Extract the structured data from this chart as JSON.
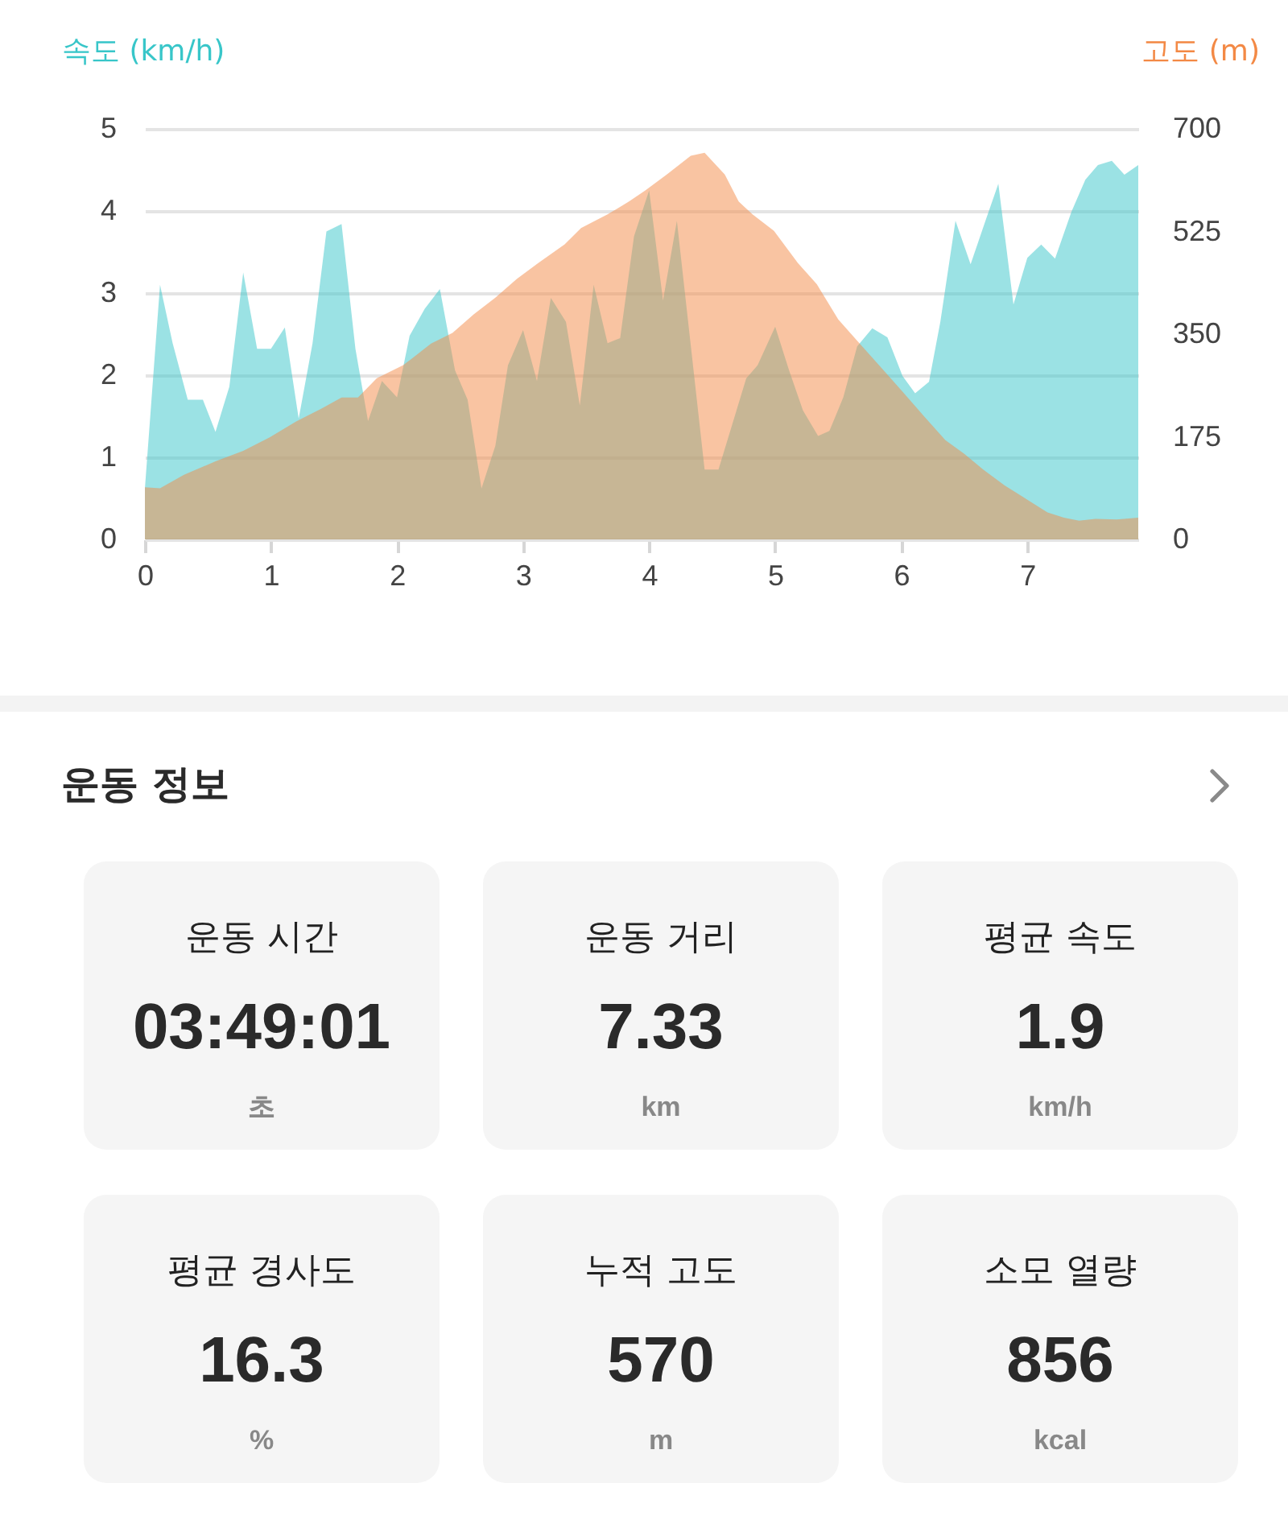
{
  "chart_data": [
    {
      "type": "area",
      "ylabel": "속도 (km/h)",
      "y2label": "고도 (m)",
      "xlim": [
        0,
        7.88
      ],
      "xticks": [
        0,
        1,
        2,
        3,
        4,
        5,
        6,
        7
      ],
      "ylim": [
        0,
        5
      ],
      "yticks": [
        0,
        1,
        2,
        3,
        4,
        5
      ],
      "y2lim": [
        0,
        700
      ],
      "y2ticks": [
        0,
        175,
        350,
        525,
        700
      ],
      "grid": "y",
      "series": [
        {
          "color": "#38c6c9",
          "x": [
            0,
            0.12,
            0.22,
            0.34,
            0.46,
            0.56,
            0.67,
            0.78,
            0.89,
            1.0,
            1.11,
            1.22,
            1.33,
            1.44,
            1.56,
            1.67,
            1.77,
            1.88,
            2.0,
            2.1,
            2.22,
            2.34,
            2.46,
            2.56,
            2.67,
            2.78,
            2.88,
            3.0,
            3.11,
            3.22,
            3.34,
            3.45,
            3.56,
            3.67,
            3.77,
            3.88,
            4.0,
            4.11,
            4.22,
            4.44,
            4.55,
            4.77,
            4.86,
            5.0,
            5.11,
            5.22,
            5.34,
            5.43,
            5.54,
            5.65,
            5.77,
            5.89,
            6.01,
            6.11,
            6.22,
            6.31,
            6.43,
            6.55,
            6.67,
            6.77,
            6.89,
            7.0,
            7.11,
            7.22,
            7.35,
            7.46,
            7.56,
            7.67,
            7.77,
            7.88
          ],
          "values": [
            0.62,
            3.1,
            2.39,
            1.7,
            1.7,
            1.31,
            1.86,
            3.25,
            2.32,
            2.32,
            2.58,
            1.47,
            2.39,
            3.75,
            3.84,
            2.32,
            1.44,
            1.93,
            1.73,
            2.48,
            2.81,
            3.05,
            2.06,
            1.7,
            0.62,
            1.14,
            2.12,
            2.55,
            1.93,
            2.94,
            2.65,
            1.63,
            3.1,
            2.39,
            2.45,
            3.69,
            4.25,
            2.91,
            3.88,
            0.85,
            0.85,
            1.96,
            2.12,
            2.59,
            2.06,
            1.57,
            1.26,
            1.32,
            1.73,
            2.35,
            2.57,
            2.46,
            1.99,
            1.78,
            1.92,
            2.65,
            3.88,
            3.35,
            3.89,
            4.33,
            2.86,
            3.43,
            3.59,
            3.42,
            3.99,
            4.38,
            4.56,
            4.61,
            4.44,
            4.56
          ]
        },
        {
          "color": "#f38945",
          "axis": "y2",
          "x": [
            0,
            0.12,
            0.31,
            0.56,
            0.78,
            0.99,
            1.2,
            1.41,
            1.56,
            1.69,
            1.84,
            2.05,
            2.27,
            2.44,
            2.61,
            2.78,
            2.95,
            3.12,
            3.33,
            3.46,
            3.67,
            3.84,
            3.97,
            4.14,
            4.33,
            4.44,
            4.6,
            4.71,
            4.82,
            4.99,
            5.18,
            5.33,
            5.5,
            5.67,
            5.84,
            6.01,
            6.18,
            6.35,
            6.5,
            6.65,
            6.82,
            6.99,
            7.16,
            7.29,
            7.41,
            7.54,
            7.71,
            7.88
          ],
          "values": [
            89,
            87,
            110,
            133,
            151,
            174,
            201,
            224,
            242,
            242,
            275,
            297,
            334,
            352,
            384,
            412,
            444,
            471,
            503,
            531,
            554,
            576,
            595,
            622,
            654,
            659,
            622,
            576,
            554,
            526,
            471,
            435,
            375,
            334,
            293,
            252,
            210,
            169,
            146,
            119,
            92,
            69,
            46,
            37,
            32,
            35,
            34,
            37
          ]
        }
      ]
    },
    {
      "type": "other",
      "title": "운동 정보",
      "annotations": [
        "운동 시간",
        "03:49:01",
        "초",
        "운동 거리",
        "7.33",
        "km",
        "평균 속도",
        "1.9",
        "km/h",
        "평균 경사도",
        "16.3",
        "%",
        "누적 고도",
        "570",
        "m",
        "소모 열량",
        "856",
        "kcal"
      ]
    }
  ]
}
